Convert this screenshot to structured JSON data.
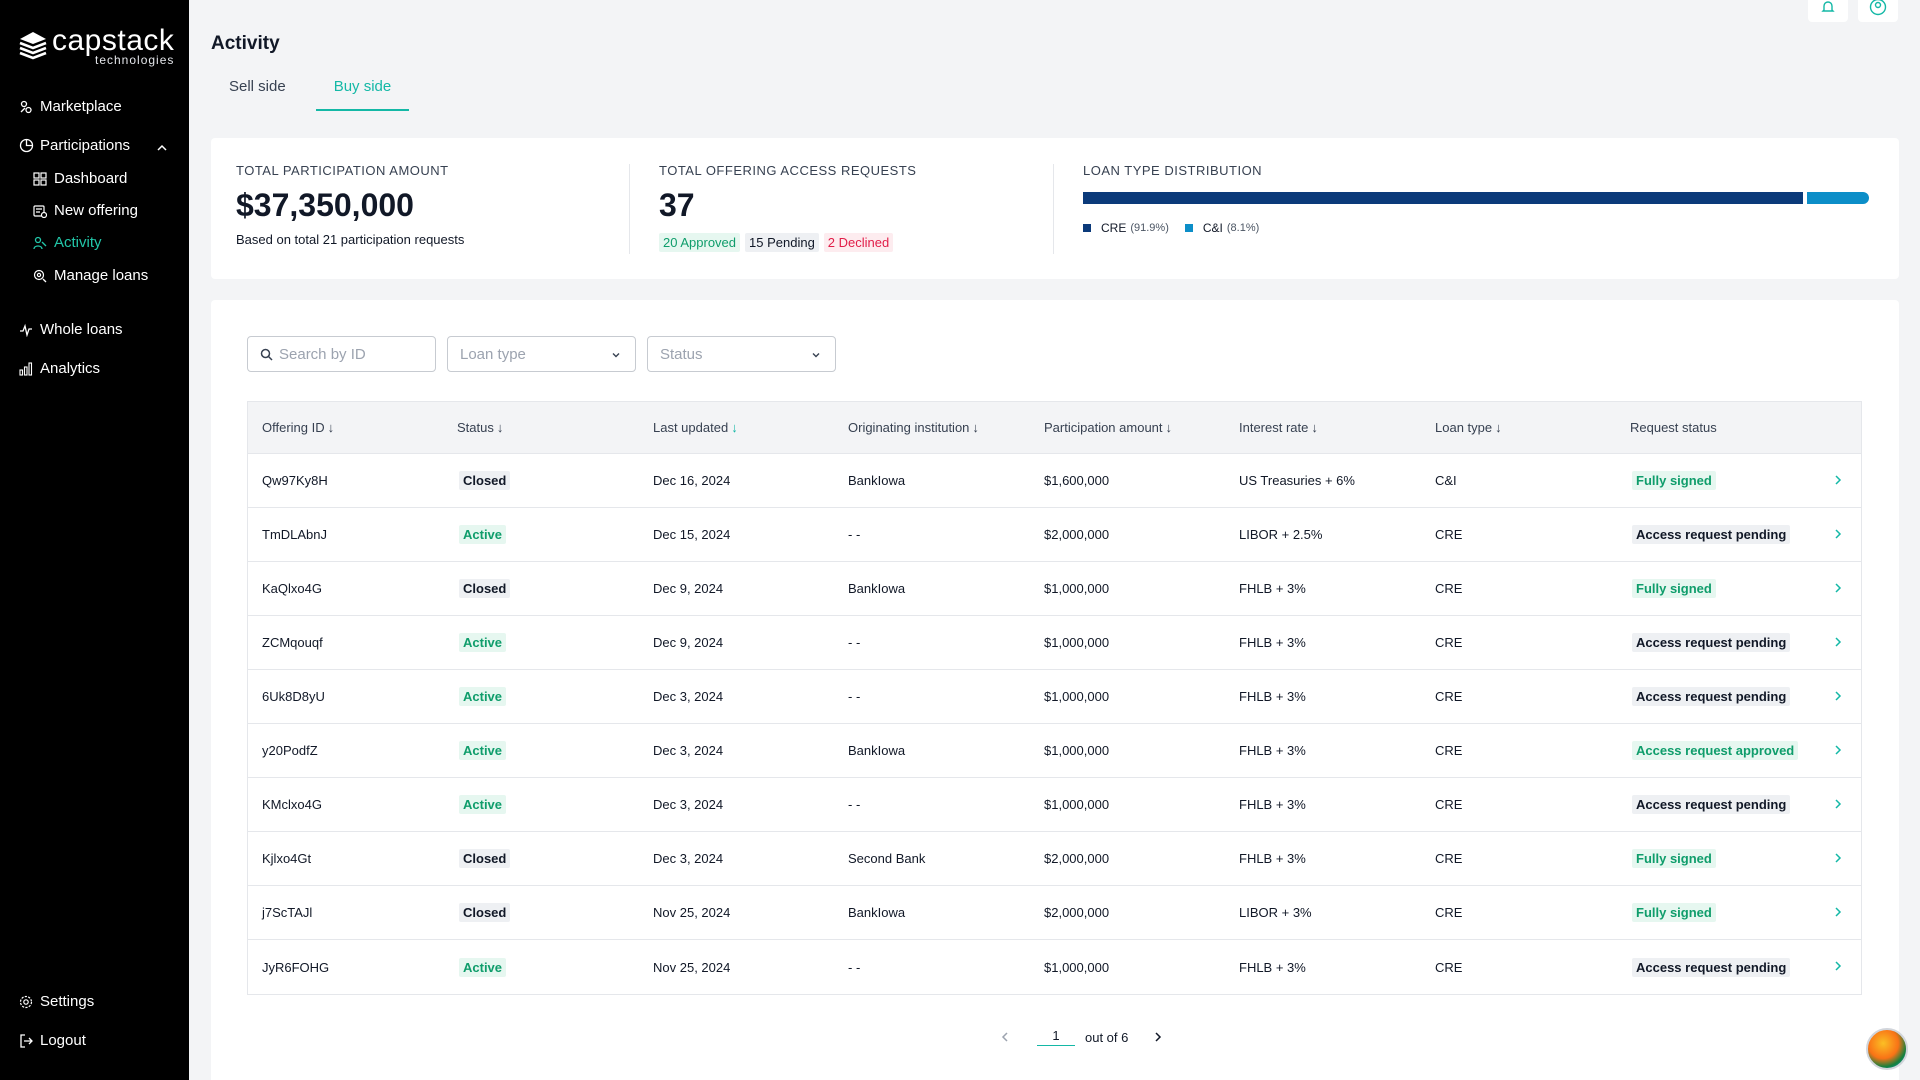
{
  "brand": {
    "name": "capstack",
    "sub": "technologies"
  },
  "sidebar": {
    "items": [
      {
        "label": "Marketplace",
        "icon": "marketplace-icon"
      },
      {
        "label": "Participations",
        "icon": "participations-icon"
      },
      {
        "label": "Dashboard",
        "icon": "dashboard-icon"
      },
      {
        "label": "New offering",
        "icon": "new-offering-icon"
      },
      {
        "label": "Activity",
        "icon": "activity-icon"
      },
      {
        "label": "Manage loans",
        "icon": "manage-loans-icon"
      },
      {
        "label": "Whole loans",
        "icon": "whole-loans-icon"
      },
      {
        "label": "Analytics",
        "icon": "analytics-icon"
      },
      {
        "label": "Settings",
        "icon": "settings-icon"
      },
      {
        "label": "Logout",
        "icon": "logout-icon"
      }
    ],
    "active": "Activity"
  },
  "header": {
    "title": "Activity",
    "tabs": [
      {
        "label": "Sell side"
      },
      {
        "label": "Buy side"
      }
    ],
    "active_tab": "Buy side"
  },
  "stats": {
    "participation": {
      "label": "TOTAL PARTICIPATION AMOUNT",
      "value": "$37,350,000",
      "note": "Based on total 21 participation requests"
    },
    "access": {
      "label": "TOTAL OFFERING ACCESS REQUESTS",
      "value": "37",
      "approved": "20 Approved",
      "pending": "15 Pending",
      "declined": "2 Declined"
    },
    "distribution": {
      "label": "LOAN TYPE DISTRIBUTION",
      "segments": [
        {
          "name": "CRE",
          "pct_label": "(91.9%)",
          "pct": 91.9,
          "color": "#0b3a7a"
        },
        {
          "name": "C&I",
          "pct_label": "(8.1%)",
          "pct": 8.1,
          "color": "#0c8ec8"
        }
      ]
    }
  },
  "filters": {
    "search_placeholder": "Search by ID",
    "loan_type": "Loan type",
    "status": "Status"
  },
  "table": {
    "columns": [
      "Offering ID",
      "Status",
      "Last updated",
      "Originating institution",
      "Participation amount",
      "Interest rate",
      "Loan type",
      "Request status"
    ],
    "sort_arrow": "↓",
    "rows": [
      {
        "id": "Qw97Ky8H",
        "status": "Closed",
        "updated": "Dec 16, 2024",
        "institution": "BankIowa",
        "amount": "$1,600,000",
        "rate": "US Treasuries + 6%",
        "loan_type": "C&I",
        "request": "Fully signed",
        "request_tone": "req-green"
      },
      {
        "id": "TmDLAbnJ",
        "status": "Active",
        "updated": "Dec 15, 2024",
        "institution": "- -",
        "amount": "$2,000,000",
        "rate": "LIBOR + 2.5%",
        "loan_type": "CRE",
        "request": "Access request pending",
        "request_tone": "req-gray"
      },
      {
        "id": "KaQlxo4G",
        "status": "Closed",
        "updated": "Dec 9, 2024",
        "institution": "BankIowa",
        "amount": "$1,000,000",
        "rate": "FHLB + 3%",
        "loan_type": "CRE",
        "request": "Fully signed",
        "request_tone": "req-green"
      },
      {
        "id": "ZCMqouqf",
        "status": "Active",
        "updated": "Dec 9, 2024",
        "institution": "- -",
        "amount": "$1,000,000",
        "rate": "FHLB + 3%",
        "loan_type": "CRE",
        "request": "Access request pending",
        "request_tone": "req-gray"
      },
      {
        "id": "6Uk8D8yU",
        "status": "Active",
        "updated": "Dec 3, 2024",
        "institution": "- -",
        "amount": "$1,000,000",
        "rate": "FHLB + 3%",
        "loan_type": "CRE",
        "request": "Access request pending",
        "request_tone": "req-gray"
      },
      {
        "id": "y20PodfZ",
        "status": "Active",
        "updated": "Dec 3, 2024",
        "institution": "BankIowa",
        "amount": "$1,000,000",
        "rate": "FHLB + 3%",
        "loan_type": "CRE",
        "request": "Access request approved",
        "request_tone": "req-green"
      },
      {
        "id": "KMclxo4G",
        "status": "Active",
        "updated": "Dec 3, 2024",
        "institution": "- -",
        "amount": "$1,000,000",
        "rate": "FHLB + 3%",
        "loan_type": "CRE",
        "request": "Access request pending",
        "request_tone": "req-gray"
      },
      {
        "id": "Kjlxo4Gt",
        "status": "Closed",
        "updated": "Dec 3, 2024",
        "institution": "Second Bank",
        "amount": "$2,000,000",
        "rate": "FHLB + 3%",
        "loan_type": "CRE",
        "request": "Fully signed",
        "request_tone": "req-green"
      },
      {
        "id": "j7ScTAJl",
        "status": "Closed",
        "updated": "Nov 25, 2024",
        "institution": "BankIowa",
        "amount": "$2,000,000",
        "rate": "LIBOR + 3%",
        "loan_type": "CRE",
        "request": "Fully signed",
        "request_tone": "req-green"
      },
      {
        "id": "JyR6FOHG",
        "status": "Active",
        "updated": "Nov 25, 2024",
        "institution": "- -",
        "amount": "$1,000,000",
        "rate": "FHLB + 3%",
        "loan_type": "CRE",
        "request": "Access request pending",
        "request_tone": "req-gray"
      }
    ]
  },
  "pagination": {
    "page": "1",
    "total_label": "out of 6"
  },
  "colors": {
    "accent": "#14b8a6",
    "sidebar_bg": "#000000",
    "cre": "#0b3a7a",
    "ci": "#0c8ec8"
  }
}
